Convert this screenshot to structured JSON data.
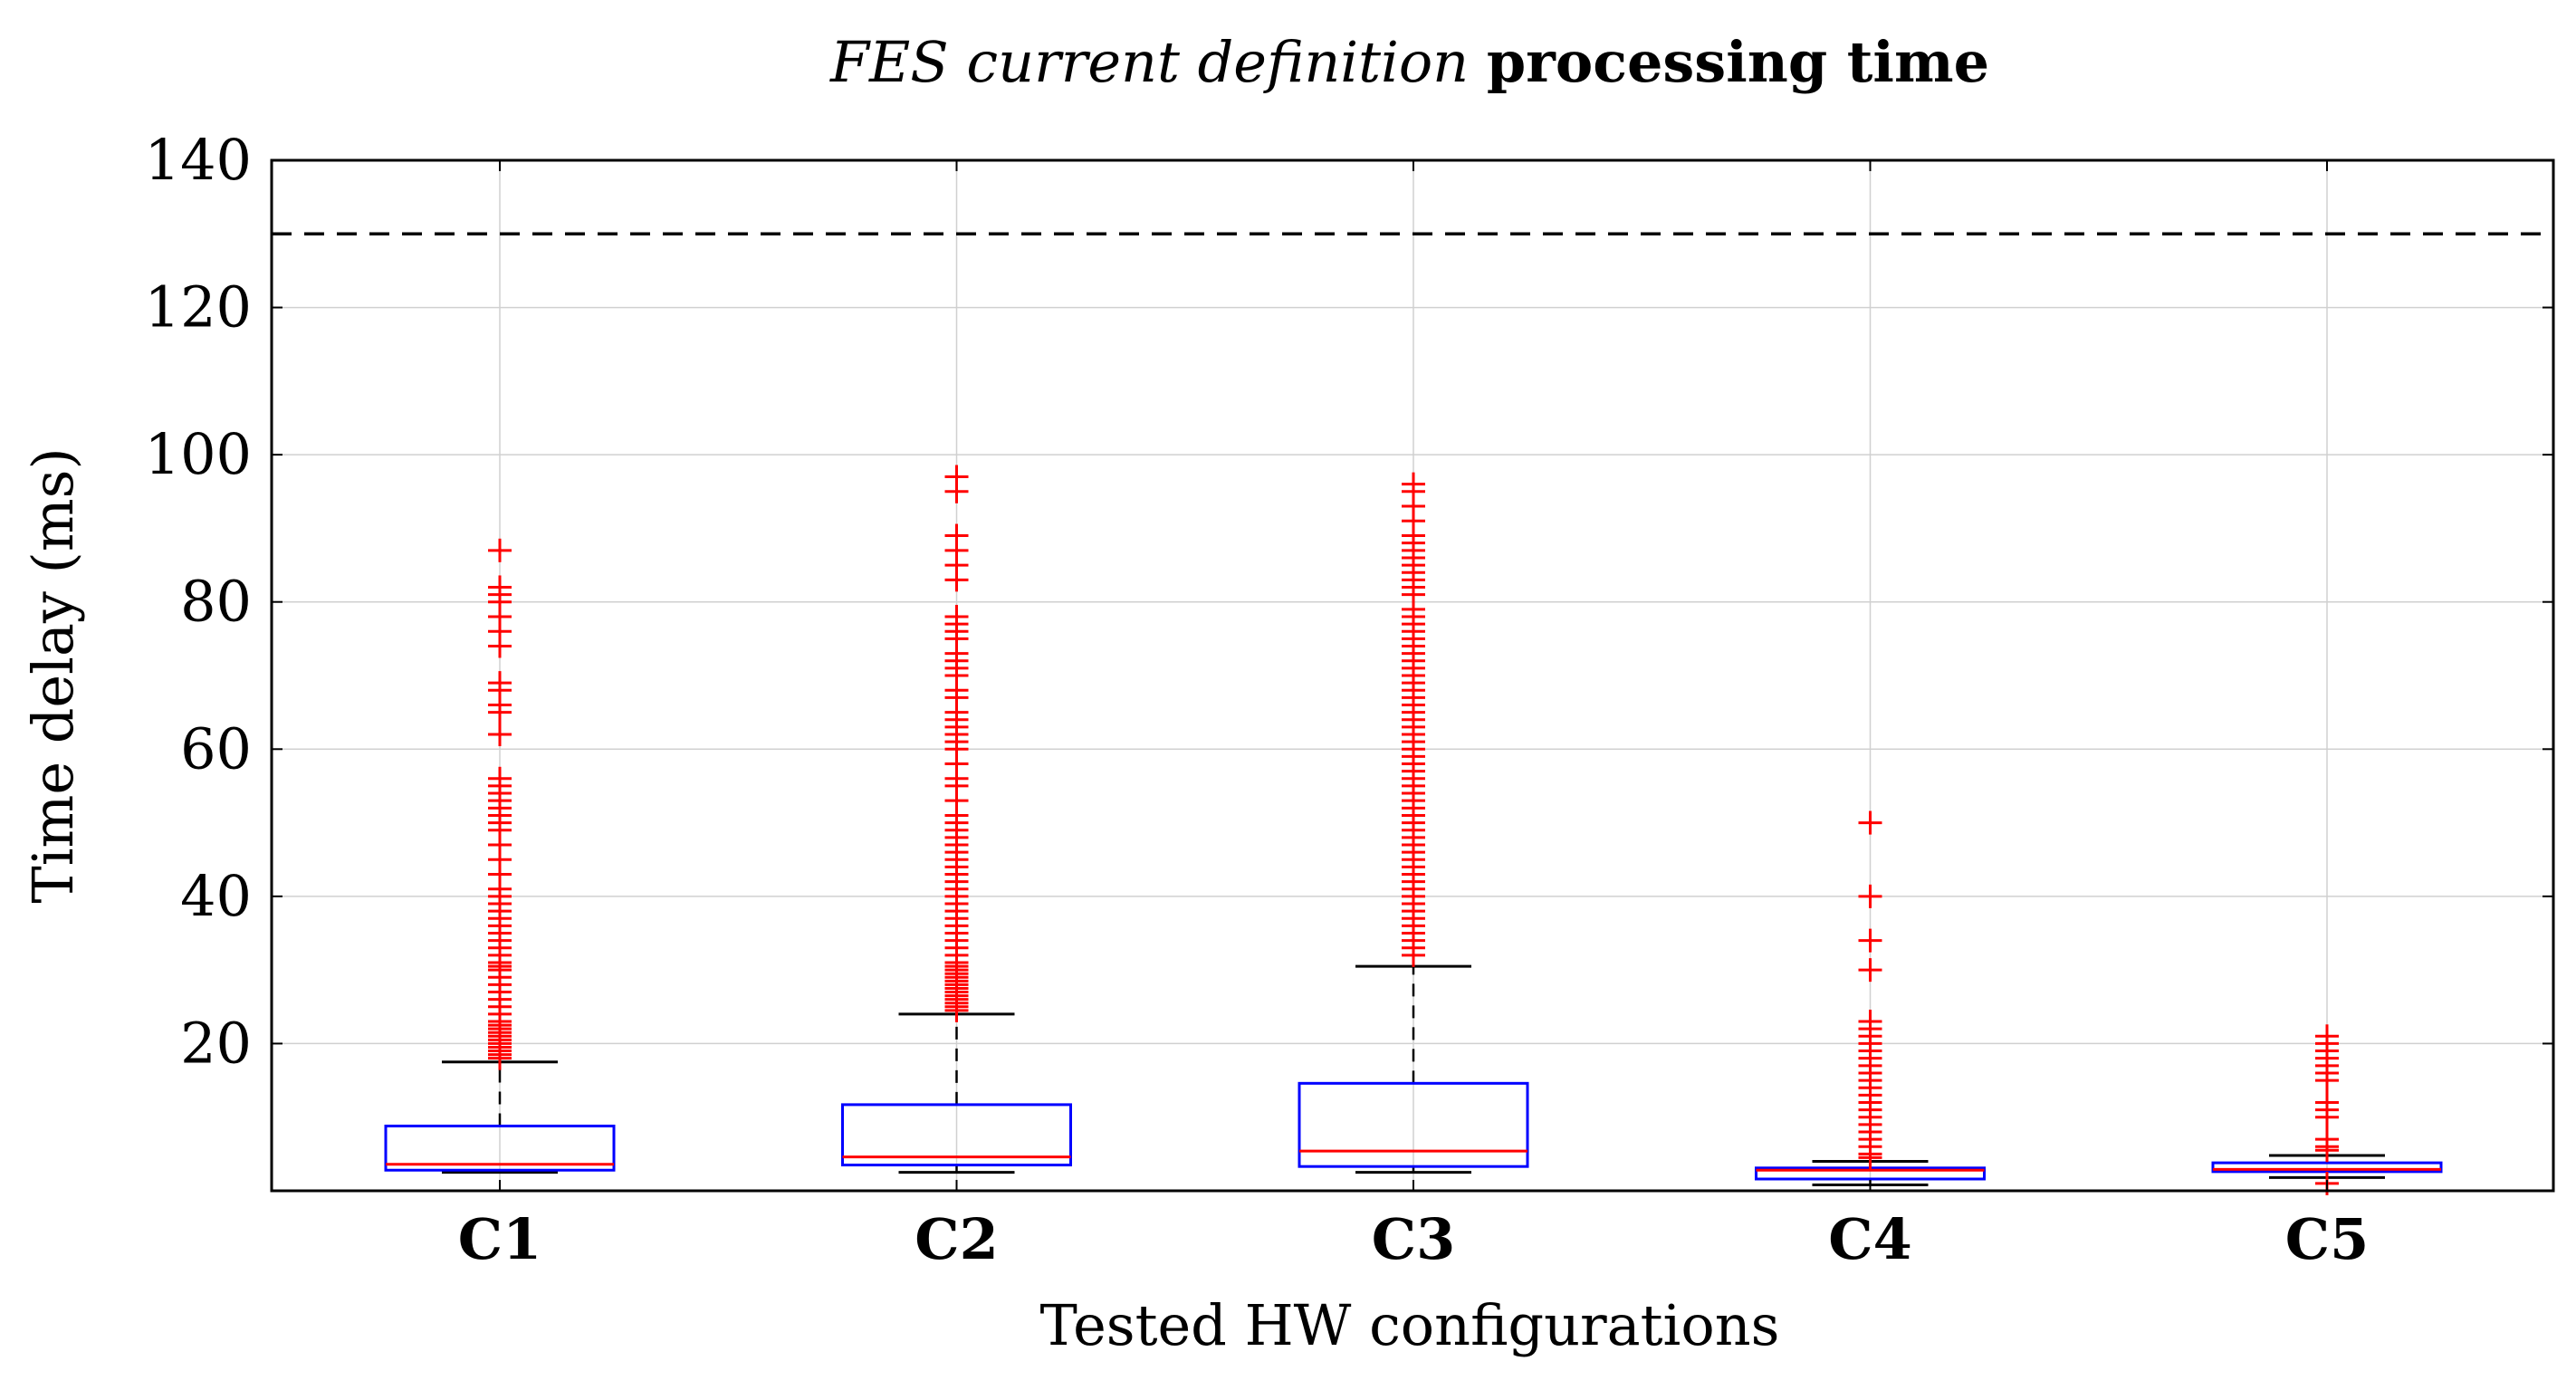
{
  "chart_data": {
    "type": "box",
    "title_italic": "FES current definition",
    "title_bold": "processing time",
    "xlabel": "Tested HW configurations",
    "ylabel": "Time delay (ms)",
    "ylim": [
      0,
      140
    ],
    "yticks": [
      20,
      40,
      60,
      80,
      100,
      120,
      140
    ],
    "grid": true,
    "threshold": 130,
    "colors": {
      "box": "#0000ff",
      "median": "#ff0000",
      "outlier": "#ff0000",
      "whisker": "#000000",
      "threshold": "#000000"
    },
    "categories": [
      "C1",
      "C2",
      "C3",
      "C4",
      "C5"
    ],
    "boxes": [
      {
        "label": "C1",
        "whisker_low": 2.5,
        "q1": 2.8,
        "median": 3.6,
        "q3": 8.8,
        "whisker_high": 17.5,
        "outliers": [
          18,
          18.5,
          19,
          19.5,
          20,
          20.5,
          21,
          21.5,
          22,
          22.5,
          23,
          24,
          25,
          26,
          27,
          28,
          29,
          30,
          30.5,
          31,
          32,
          33,
          34,
          35,
          36,
          37,
          38,
          39,
          40,
          41,
          43,
          45,
          47,
          49,
          50,
          51,
          52,
          53,
          54,
          55,
          56,
          62,
          65,
          66,
          68,
          69,
          74,
          76,
          78,
          80,
          81,
          82,
          87
        ]
      },
      {
        "label": "C2",
        "whisker_low": 2.5,
        "q1": 3.5,
        "median": 4.6,
        "q3": 11.7,
        "whisker_high": 24,
        "outliers": [
          24.5,
          25,
          25.5,
          26,
          26.5,
          27,
          27.5,
          28,
          28.5,
          29,
          29.5,
          30,
          30.5,
          31,
          32,
          33,
          34,
          35,
          36,
          37,
          38,
          39,
          40,
          41,
          42,
          43,
          44,
          45,
          46,
          47,
          48,
          49,
          50,
          51,
          53,
          55,
          56,
          58,
          60,
          61,
          62,
          63,
          64,
          65,
          67,
          68,
          70,
          71,
          72,
          73,
          75,
          76,
          77,
          78,
          83,
          85,
          87,
          89,
          95,
          97
        ]
      },
      {
        "label": "C3",
        "whisker_low": 2.5,
        "q1": 3.3,
        "median": 5.4,
        "q3": 14.6,
        "whisker_high": 30.5,
        "outliers": [
          32,
          33,
          34,
          35,
          36,
          37,
          38,
          39,
          40,
          41,
          42,
          43,
          44,
          45,
          46,
          47,
          48,
          49,
          50,
          51,
          52,
          53,
          54,
          55,
          56,
          57,
          58,
          59,
          60,
          61,
          62,
          63,
          64,
          65,
          66,
          67,
          68,
          69,
          70,
          71,
          72,
          73,
          74,
          75,
          76,
          77,
          78,
          79,
          81,
          82,
          83,
          84,
          85,
          86,
          87,
          88,
          89,
          91,
          93,
          95,
          96
        ]
      },
      {
        "label": "C4",
        "whisker_low": 0.8,
        "q1": 1.6,
        "median": 2.8,
        "q3": 3.1,
        "whisker_high": 4.0,
        "outliers": [
          4.5,
          5,
          6,
          7,
          8,
          9,
          10,
          11,
          12,
          13,
          14,
          15,
          16,
          17,
          18,
          19,
          20,
          21,
          22,
          23,
          30,
          34,
          40,
          50
        ]
      },
      {
        "label": "C5",
        "whisker_low": 1.8,
        "q1": 2.6,
        "median": 2.9,
        "q3": 3.8,
        "whisker_high": 4.8,
        "outliers": [
          1.0,
          5.5,
          6,
          7,
          10,
          11,
          12,
          15,
          16,
          17,
          18,
          19,
          20,
          21
        ]
      }
    ]
  }
}
